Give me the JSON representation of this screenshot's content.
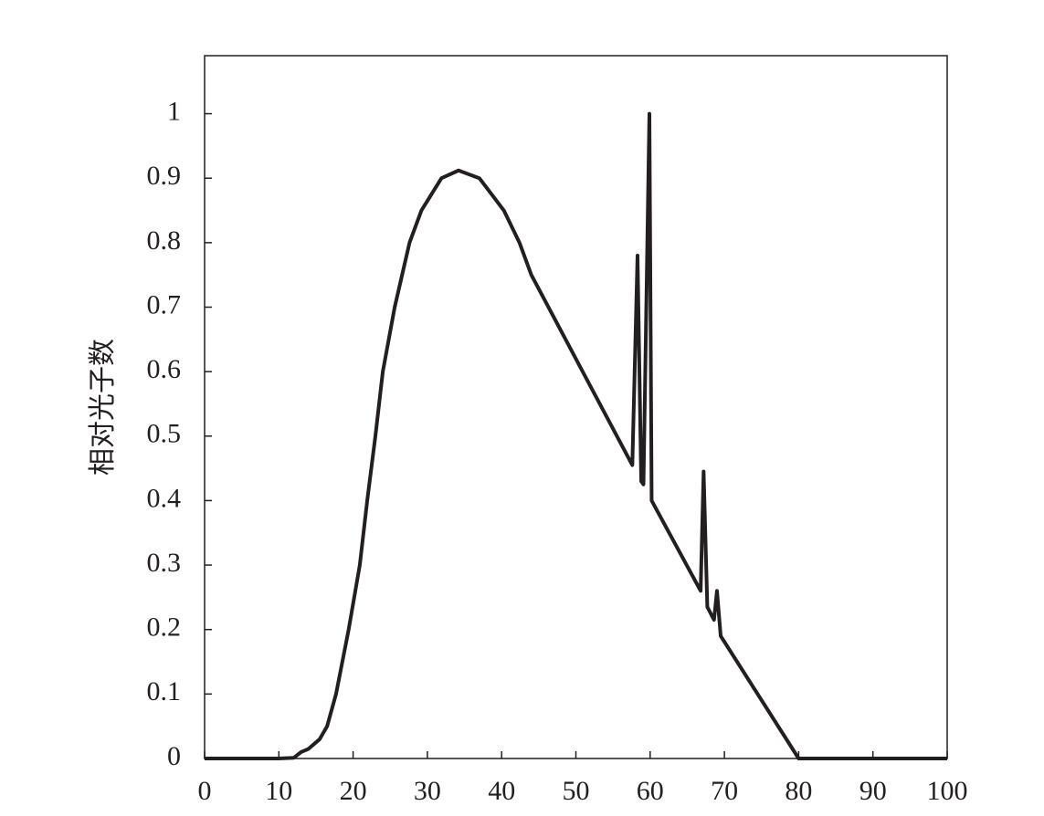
{
  "chart_data": {
    "type": "line",
    "ylabel": "相对光子数",
    "x": [
      0,
      10,
      12,
      13,
      14,
      15.5,
      16.5,
      17.7,
      19.4,
      20.9,
      21.9,
      23,
      24,
      25.6,
      27.6,
      29.2,
      31.9,
      34.2,
      37,
      40.3,
      42.4,
      44,
      57.6,
      58.3,
      58.8,
      59.1,
      59.9,
      60.2,
      66.8,
      67.2,
      67.7,
      68.6,
      69,
      69.5,
      80,
      100
    ],
    "series": [
      {
        "name": null,
        "color": "#231f20",
        "values": [
          0,
          0,
          0.001,
          0.01,
          0.015,
          0.03,
          0.05,
          0.1,
          0.2,
          0.3,
          0.4,
          0.5,
          0.6,
          0.7,
          0.8,
          0.85,
          0.9,
          0.912,
          0.9,
          0.85,
          0.8,
          0.75,
          0.455,
          0.78,
          0.43,
          0.425,
          1.0,
          0.4,
          0.26,
          0.445,
          0.235,
          0.215,
          0.26,
          0.19,
          0,
          0
        ]
      }
    ],
    "xlim": [
      0,
      100
    ],
    "ylim": [
      0,
      1.09
    ],
    "xticks": [
      0,
      10,
      20,
      30,
      40,
      50,
      60,
      70,
      80,
      90,
      100
    ],
    "yticks": [
      0,
      0.1,
      0.2,
      0.3,
      0.4,
      0.5,
      0.6,
      0.7,
      0.8,
      0.9,
      1
    ]
  }
}
